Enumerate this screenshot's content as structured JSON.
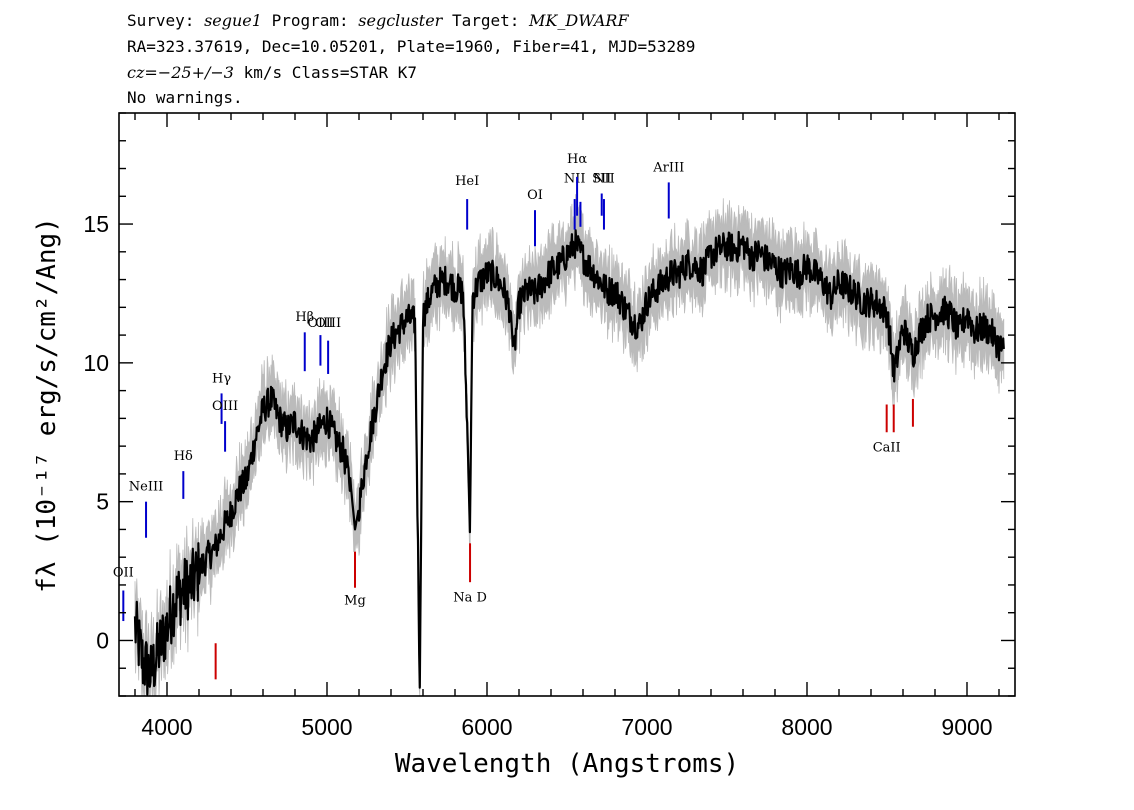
{
  "header": {
    "line1": {
      "survey_label": "Survey: ",
      "survey": "segue1",
      "program_label": " Program: ",
      "program": "segcluster",
      "target_label": " Target: ",
      "target": "MK_DWARF"
    },
    "line2": "RA=323.37619, Dec=10.05201, Plate=1960, Fiber=41, MJD=53289",
    "line3": {
      "cz": "cz=−25+/−3",
      "rest": " km/s Class=STAR K7"
    },
    "line4": "No warnings."
  },
  "chart_data": {
    "type": "line",
    "xlabel": "Wavelength (Angstroms)",
    "ylabel": "fλ (10⁻¹⁷ erg/s/cm²/Ang)",
    "xlim": [
      3700,
      9300
    ],
    "ylim": [
      -2,
      19
    ],
    "x_ticks": [
      4000,
      5000,
      6000,
      7000,
      8000,
      9000
    ],
    "y_ticks": [
      0,
      5,
      10,
      15
    ],
    "series": [
      {
        "role": "flux",
        "color": "#000000",
        "x": [
          3800,
          3850,
          3900,
          3950,
          4000,
          4050,
          4100,
          4150,
          4200,
          4250,
          4300,
          4350,
          4400,
          4450,
          4500,
          4550,
          4600,
          4650,
          4700,
          4750,
          4800,
          4850,
          4900,
          4950,
          5000,
          5050,
          5100,
          5150,
          5175,
          5200,
          5250,
          5300,
          5350,
          5400,
          5450,
          5500,
          5550,
          5580,
          5600,
          5650,
          5700,
          5750,
          5800,
          5850,
          5880,
          5893,
          5910,
          5950,
          6000,
          6050,
          6100,
          6150,
          6165,
          6200,
          6250,
          6300,
          6350,
          6400,
          6450,
          6500,
          6550,
          6600,
          6650,
          6700,
          6750,
          6800,
          6850,
          6900,
          6950,
          7000,
          7050,
          7100,
          7150,
          7200,
          7250,
          7300,
          7350,
          7400,
          7450,
          7500,
          7550,
          7600,
          7650,
          7700,
          7750,
          7800,
          7850,
          7900,
          7950,
          8000,
          8050,
          8100,
          8150,
          8200,
          8250,
          8300,
          8350,
          8400,
          8450,
          8500,
          8545,
          8600,
          8662,
          8700,
          8750,
          8800,
          8850,
          8900,
          8950,
          9000,
          9050,
          9100,
          9150,
          9200,
          9230
        ],
        "y": [
          0.5,
          -0.8,
          -1.2,
          -0.3,
          0.5,
          1.5,
          1.8,
          2.0,
          2.5,
          3.0,
          3.3,
          4.0,
          4.6,
          5.4,
          5.8,
          7.2,
          8.3,
          8.7,
          8.0,
          7.6,
          7.9,
          7.4,
          7.2,
          7.6,
          8.0,
          7.3,
          6.8,
          5.5,
          4.0,
          4.8,
          6.8,
          8.3,
          9.8,
          10.8,
          11.2,
          11.6,
          11.5,
          -1.7,
          11.7,
          12.5,
          12.9,
          13.0,
          12.7,
          12.6,
          7.0,
          3.9,
          12.4,
          12.9,
          13.2,
          13.1,
          12.7,
          11.8,
          10.2,
          12.1,
          12.6,
          12.5,
          12.9,
          13.3,
          13.5,
          13.9,
          14.3,
          13.8,
          13.4,
          13.0,
          12.6,
          12.6,
          12.1,
          11.6,
          11.3,
          12.2,
          12.6,
          12.9,
          13.2,
          13.2,
          13.6,
          13.5,
          13.3,
          13.9,
          14.1,
          14.2,
          14.1,
          14.3,
          13.8,
          14.0,
          13.7,
          13.5,
          13.2,
          13.4,
          13.2,
          13.5,
          13.2,
          12.9,
          12.4,
          12.9,
          12.7,
          12.5,
          12.2,
          12.2,
          12.1,
          11.8,
          9.6,
          11.3,
          10.3,
          11.0,
          11.6,
          11.7,
          11.9,
          11.7,
          11.1,
          11.8,
          11.1,
          11.3,
          11.1,
          10.6,
          10.5
        ]
      },
      {
        "role": "flux-error-envelope",
        "color": "#bbbbbb",
        "spread": 0.9
      }
    ],
    "emission_lines": [
      {
        "label": "OII",
        "x": 3727,
        "y_low": 0.7,
        "y_high": 1.8,
        "label_y": 2.3,
        "color": "#0000cc"
      },
      {
        "label": "NeIII",
        "x": 3869,
        "y_low": 3.7,
        "y_high": 5.0,
        "label_y": 5.4,
        "color": "#0000cc"
      },
      {
        "label": "Hδ",
        "x": 4102,
        "y_low": 5.1,
        "y_high": 6.1,
        "label_y": 6.5,
        "color": "#0000cc"
      },
      {
        "label": "Hγ",
        "x": 4341,
        "y_low": 7.8,
        "y_high": 8.9,
        "label_y": 9.3,
        "color": "#0000cc"
      },
      {
        "label": "OIII",
        "x": 4363,
        "y_low": 6.8,
        "y_high": 7.9,
        "label_y": 8.3,
        "color": "#0000cc"
      },
      {
        "label": "Hβ",
        "x": 4861,
        "y_low": 9.7,
        "y_high": 11.1,
        "label_y": 11.5,
        "color": "#0000cc"
      },
      {
        "label": "OIII",
        "x": 4959,
        "y_low": 9.9,
        "y_high": 11.0,
        "label_y": 11.3,
        "color": "#0000cc"
      },
      {
        "label": "OIII",
        "x": 5007,
        "y_low": 9.6,
        "y_high": 10.8,
        "label_y": 11.3,
        "color": "#0000cc"
      },
      {
        "label": "HeI",
        "x": 5876,
        "y_low": 14.8,
        "y_high": 15.9,
        "label_y": 16.4,
        "color": "#0000cc"
      },
      {
        "label": "OI",
        "x": 6300,
        "y_low": 14.2,
        "y_high": 15.5,
        "label_y": 15.9,
        "color": "#0000cc"
      },
      {
        "label": "NII",
        "x": 6548,
        "y_low": 14.8,
        "y_high": 15.9,
        "label_y": 16.5,
        "color": "#0000cc"
      },
      {
        "label": "Hα",
        "x": 6563,
        "y_low": 15.3,
        "y_high": 16.7,
        "label_y": 17.2,
        "color": "#0000cc"
      },
      {
        "label": "NII",
        "x": 6584,
        "y_low": 14.9,
        "y_high": 15.8,
        "label_y": null,
        "color": "#0000cc"
      },
      {
        "label": "SII",
        "x": 6717,
        "y_low": 15.3,
        "y_high": 16.1,
        "label_y": 16.5,
        "color": "#0000cc"
      },
      {
        "label": "NII",
        "x": 6731,
        "y_low": 14.8,
        "y_high": 15.9,
        "label_y": 16.5,
        "color": "#0000cc"
      },
      {
        "label": "ArIII",
        "x": 7136,
        "y_low": 15.2,
        "y_high": 16.5,
        "label_y": 16.9,
        "color": "#0000cc"
      }
    ],
    "absorption_lines": [
      {
        "label": "",
        "x": 4304,
        "y_low": -1.4,
        "y_high": -0.1,
        "label_y": null,
        "color": "#cc0000"
      },
      {
        "label": "Mg",
        "x": 5175,
        "y_low": 1.9,
        "y_high": 3.2,
        "label_y": 1.3,
        "color": "#cc0000"
      },
      {
        "label": "Na D",
        "x": 5894,
        "y_low": 2.1,
        "y_high": 3.5,
        "label_y": 1.4,
        "color": "#cc0000"
      },
      {
        "label": "CaII",
        "x": 8498,
        "y_low": 7.5,
        "y_high": 8.5,
        "label_y": 6.8,
        "color": "#cc0000"
      },
      {
        "label": "",
        "x": 8542,
        "y_low": 7.5,
        "y_high": 8.5,
        "label_y": null,
        "color": "#cc0000"
      },
      {
        "label": "",
        "x": 8662,
        "y_low": 7.7,
        "y_high": 8.7,
        "label_y": null,
        "color": "#cc0000"
      }
    ]
  }
}
